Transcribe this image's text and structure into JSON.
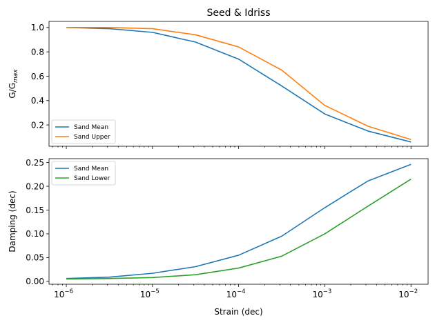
{
  "chart_data": [
    {
      "type": "line",
      "title": "Seed & Idriss",
      "xlabel": "",
      "ylabel": "G/G",
      "ylabel_sub": "max",
      "xscale": "log",
      "xlim": [
        6.3e-07,
        0.0158
      ],
      "ylim": [
        0.025,
        1.05
      ],
      "yticks": [
        "0.2",
        "0.4",
        "0.6",
        "0.8",
        "1.0"
      ],
      "ytick_values": [
        0.2,
        0.4,
        0.6,
        0.8,
        1.0
      ],
      "x": [
        1e-06,
        3.16e-06,
        1e-05,
        3.16e-05,
        0.0001,
        0.000316,
        0.001,
        0.00316,
        0.01
      ],
      "series": [
        {
          "name": "Sand Mean",
          "color": "#1f77b4",
          "values": [
            1.0,
            0.99,
            0.96,
            0.88,
            0.74,
            0.52,
            0.29,
            0.15,
            0.06
          ]
        },
        {
          "name": "Sand Upper",
          "color": "#ff7f0e",
          "values": [
            1.0,
            1.0,
            0.99,
            0.94,
            0.84,
            0.65,
            0.36,
            0.19,
            0.08
          ]
        }
      ],
      "legend": "lower-left",
      "grid": false
    },
    {
      "type": "line",
      "title": "",
      "xlabel": "Strain (dec)",
      "ylabel": "Damping (dec)",
      "xscale": "log",
      "xlim": [
        6.3e-07,
        0.0158
      ],
      "ylim": [
        -0.006,
        0.258
      ],
      "xticks": [
        "10",
        "10",
        "10",
        "10",
        "10"
      ],
      "xtick_exponents": [
        "−6",
        "−5",
        "−4",
        "−3",
        "−2"
      ],
      "xtick_values": [
        1e-06,
        1e-05,
        0.0001,
        0.001,
        0.01
      ],
      "yticks": [
        "0.00",
        "0.05",
        "0.10",
        "0.15",
        "0.20",
        "0.25"
      ],
      "ytick_values": [
        0.0,
        0.05,
        0.1,
        0.15,
        0.2,
        0.25
      ],
      "x": [
        1e-06,
        3.16e-06,
        1e-05,
        3.16e-05,
        0.0001,
        0.000316,
        0.001,
        0.00316,
        0.01
      ],
      "series": [
        {
          "name": "Sand Mean",
          "color": "#1f77b4",
          "values": [
            0.006,
            0.009,
            0.017,
            0.031,
            0.055,
            0.095,
            0.155,
            0.211,
            0.246
          ]
        },
        {
          "name": "Sand Lower",
          "color": "#2ca02c",
          "values": [
            0.005,
            0.006,
            0.008,
            0.014,
            0.028,
            0.053,
            0.1,
            0.158,
            0.215
          ]
        }
      ],
      "legend": "upper-left",
      "grid": false
    }
  ]
}
